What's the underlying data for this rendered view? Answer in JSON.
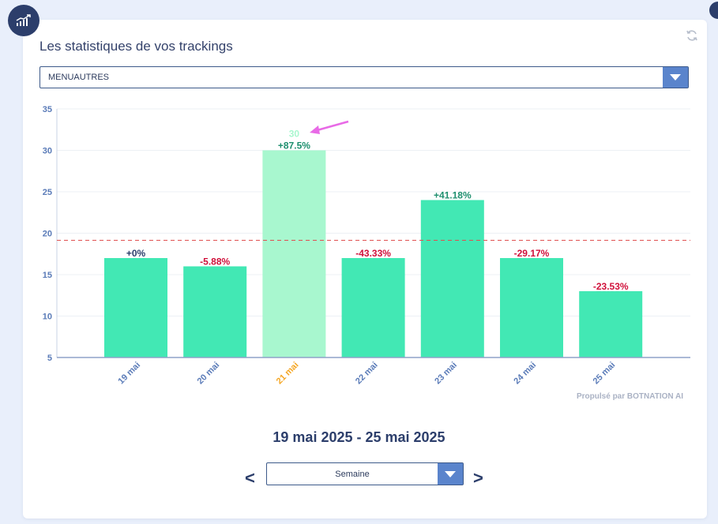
{
  "header": {
    "title": "Les statistiques de vos trackings"
  },
  "icons": {
    "corner": "chart-line-icon",
    "refresh": "refresh-icon"
  },
  "tracking_select": {
    "value": "MENUAUTRES"
  },
  "powered_by": "Propulsé par BOTNATION AI",
  "date_range": "19 mai 2025 - 25 mai 2025",
  "nav": {
    "prev": "<",
    "next": ">"
  },
  "period_select": {
    "value": "Semaine"
  },
  "colors": {
    "bar": "#42e8b4",
    "bar_highlight": "#a8f7cf",
    "positive": "#1e8f6e",
    "neutral": "#2c3e6b",
    "negative": "#d0103a",
    "selected_label": "#f5a623",
    "axis_label": "#5a7bb8",
    "average_line": "#e05050",
    "annotation_arrow": "#e86ae6"
  },
  "chart_data": {
    "type": "bar",
    "categories": [
      "19 mai",
      "20 mai",
      "21 mai",
      "22 mai",
      "23 mai",
      "24 mai",
      "25 mai"
    ],
    "values": [
      17,
      16,
      30,
      17,
      24,
      17,
      13
    ],
    "change_labels": [
      "+0%",
      "-5.88%",
      "+87.5%",
      "-43.33%",
      "+41.18%",
      "-29.17%",
      "-23.53%"
    ],
    "highlighted_index": 2,
    "highlighted_value_label": "30",
    "average": 19.14,
    "ylim": [
      5,
      35
    ],
    "yticks": [
      5,
      10,
      15,
      20,
      25,
      30,
      35
    ],
    "grid": true,
    "title": "",
    "xlabel": "",
    "ylabel": ""
  }
}
